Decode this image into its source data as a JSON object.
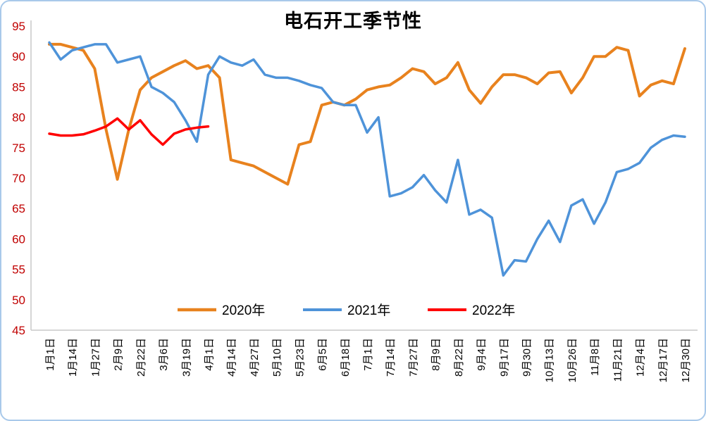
{
  "title": "电石开工季节性",
  "colors": {
    "background": "#FFFFFF",
    "border": "#A9C9EA",
    "axis": "#C9C9C9",
    "title": "#000000",
    "ytick_label": "#C00000",
    "xtick_label": "#000000",
    "legend_label": "#000000"
  },
  "chart_data": {
    "type": "line",
    "title": "电石开工季节性",
    "xlabel": "",
    "ylabel": "",
    "ylim": [
      45,
      95
    ],
    "ytick_step": 5,
    "grid": false,
    "legend_position": "bottom-center",
    "x_labels": [
      "1月1日",
      "1月14日",
      "1月27日",
      "2月9日",
      "2月22日",
      "3月6日",
      "3月19日",
      "4月1日",
      "4月14日",
      "4月27日",
      "5月10日",
      "5月23日",
      "6月5日",
      "6月18日",
      "7月1日",
      "7月14日",
      "7月27日",
      "8月9日",
      "8月22日",
      "9月4日",
      "9月17日",
      "9月30日",
      "10月13日",
      "10月26日",
      "11月8日",
      "11月21日",
      "12月4日",
      "12月17日",
      "12月30日"
    ],
    "points_per_label_interval": 2,
    "series": [
      {
        "name": "2020年",
        "color": "#E8821E",
        "width": 4,
        "values": [
          92,
          92,
          91.5,
          91,
          88,
          78,
          69.8,
          78,
          84.5,
          86.5,
          87.5,
          88.5,
          89.3,
          88,
          88.5,
          86.5,
          73,
          72.5,
          72,
          71,
          70,
          69,
          75.5,
          76,
          82,
          82.5,
          82,
          83,
          84.5,
          85,
          85.3,
          86.5,
          88,
          87.5,
          85.5,
          86.5,
          89,
          84.5,
          82.3,
          85,
          87,
          87,
          86.5,
          85.5,
          87.3,
          87.5,
          84,
          86.5,
          90,
          90,
          91.5,
          91,
          83.5,
          85.3,
          86,
          85.5,
          91.3
        ]
      },
      {
        "name": "2021年",
        "color": "#4E93D9",
        "width": 3.5,
        "values": [
          92.3,
          89.5,
          91,
          91.5,
          92,
          92,
          89,
          89.5,
          90,
          85,
          84,
          82.5,
          79.5,
          76,
          87,
          90,
          89,
          88.5,
          89.5,
          87,
          86.5,
          86.5,
          86,
          85.3,
          84.8,
          82.5,
          82,
          82,
          77.5,
          80,
          67,
          67.5,
          68.5,
          70.5,
          68,
          66,
          73,
          64,
          64.8,
          63.5,
          54,
          56.5,
          56.3,
          60,
          63,
          59.5,
          65.5,
          66.5,
          62.5,
          66,
          71,
          71.5,
          72.5,
          75,
          76.3,
          77,
          76.8
        ]
      },
      {
        "name": "2022年",
        "color": "#FF0000",
        "width": 3.5,
        "values": [
          77.3,
          77,
          77,
          77.2,
          77.8,
          78.5,
          79.8,
          78,
          79.5,
          77.2,
          75.5,
          77.3,
          78,
          78.3,
          78.5
        ]
      }
    ]
  }
}
